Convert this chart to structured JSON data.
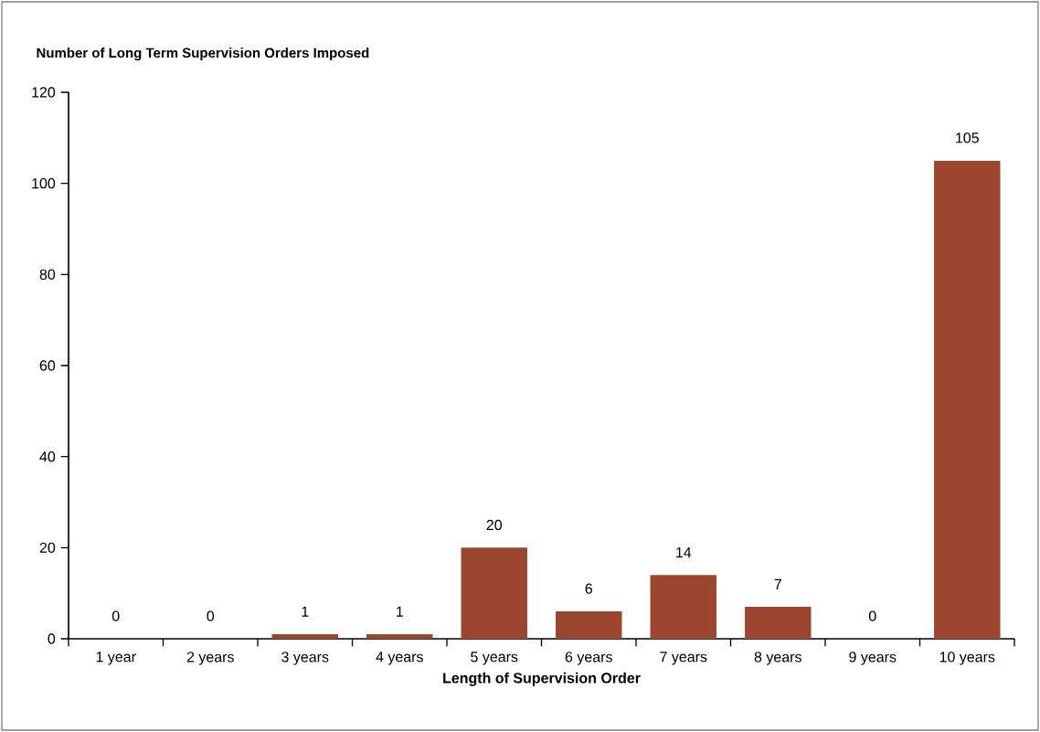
{
  "chart_data": {
    "type": "bar",
    "ylabel": "Number of Long Term Supervision Orders Imposed",
    "xlabel": "Length of Supervision Order",
    "categories": [
      "1 year",
      "2 years",
      "3 years",
      "4 years",
      "5 years",
      "6 years",
      "7 years",
      "8 years",
      "9 years",
      "10 years"
    ],
    "values": [
      0,
      0,
      1,
      1,
      20,
      6,
      14,
      7,
      0,
      105
    ],
    "color": "#9c4630",
    "ylim": [
      0,
      120
    ],
    "yticks": [
      0,
      20,
      40,
      60,
      80,
      100,
      120
    ],
    "data_labels": true,
    "grid": false
  }
}
